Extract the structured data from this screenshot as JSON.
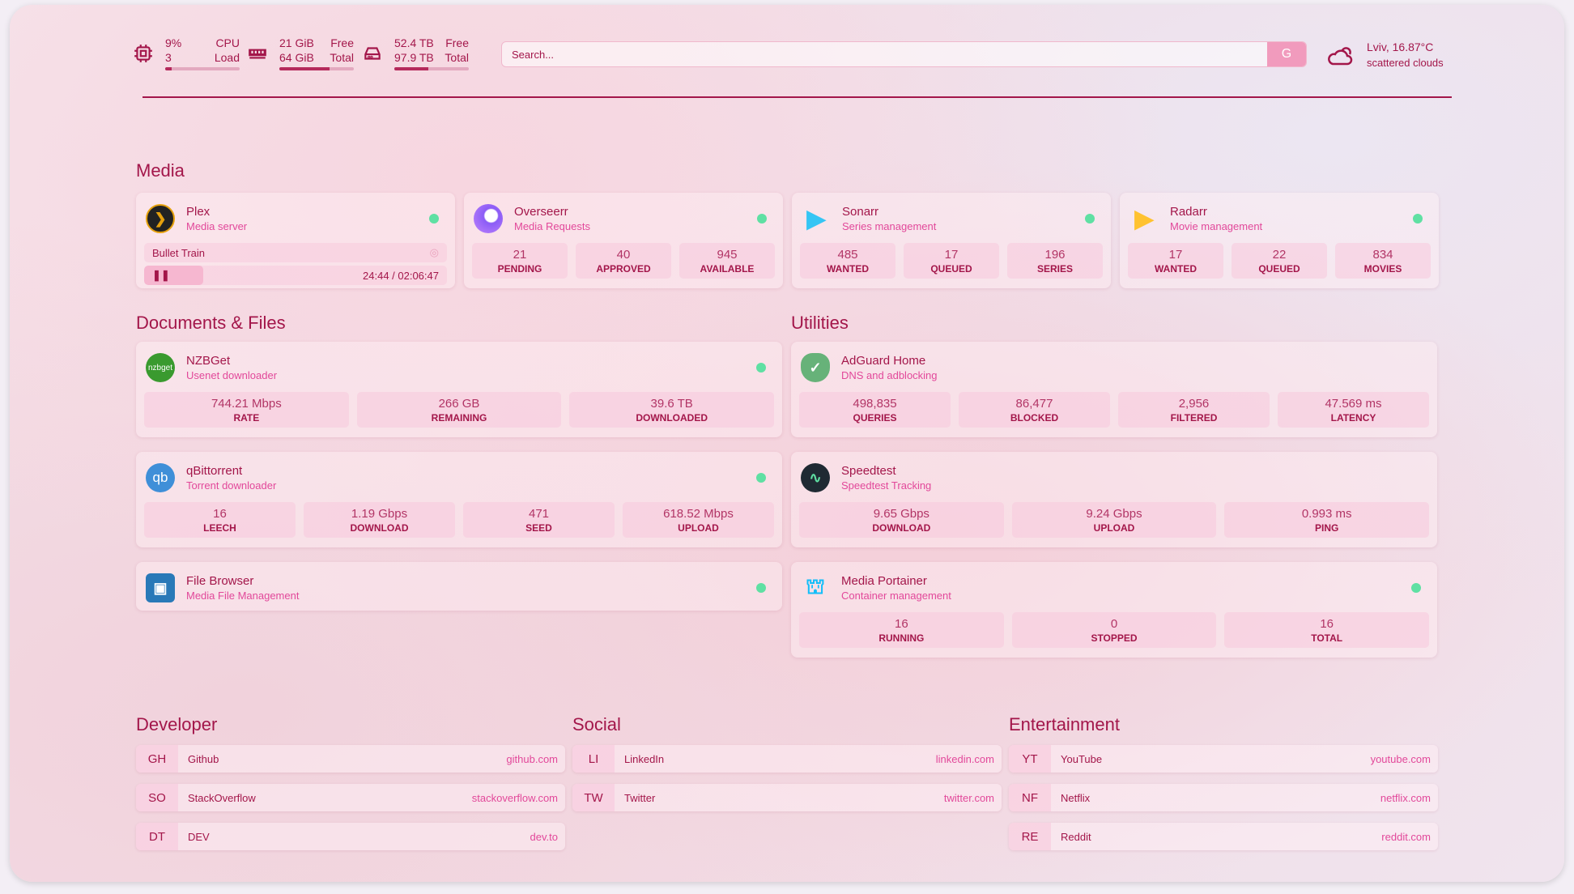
{
  "header": {
    "cpu": {
      "icon": "cpu-icon",
      "value": "9%",
      "sub": "3",
      "label1": "CPU",
      "label2": "Load",
      "fill": 0.09
    },
    "memory": {
      "icon": "memory-icon",
      "value": "21 GiB",
      "sub": "64 GiB",
      "label1": "Free",
      "label2": "Total",
      "fill": 0.67
    },
    "disk": {
      "icon": "disk-icon",
      "value": "52.4 TB",
      "sub": "97.9 TB",
      "label1": "Free",
      "label2": "Total",
      "fill": 0.46
    },
    "search": {
      "placeholder": "Search...",
      "button": "G"
    },
    "weather": {
      "icon": "cloud-icon",
      "location": "Lviv, 16.87°C",
      "description": "scattered clouds"
    }
  },
  "media": {
    "title": "Media",
    "plex": {
      "name": "Plex",
      "sub": "Media server",
      "status": "online",
      "now_playing": "Bullet Train",
      "time": "24:44 / 02:06:47",
      "progress": 0.195
    },
    "cards": [
      {
        "name": "Overseerr",
        "sub": "Media Requests",
        "icon": "overseerr-icon",
        "stats": [
          {
            "v": "21",
            "l": "PENDING"
          },
          {
            "v": "40",
            "l": "APPROVED"
          },
          {
            "v": "945",
            "l": "AVAILABLE"
          }
        ]
      },
      {
        "name": "Sonarr",
        "sub": "Series management",
        "icon": "sonarr-icon",
        "stats": [
          {
            "v": "485",
            "l": "WANTED"
          },
          {
            "v": "17",
            "l": "QUEUED"
          },
          {
            "v": "196",
            "l": "SERIES"
          }
        ]
      },
      {
        "name": "Radarr",
        "sub": "Movie management",
        "icon": "radarr-icon",
        "stats": [
          {
            "v": "17",
            "l": "WANTED"
          },
          {
            "v": "22",
            "l": "QUEUED"
          },
          {
            "v": "834",
            "l": "MOVIES"
          }
        ]
      }
    ]
  },
  "docs": {
    "title": "Documents & Files",
    "cards": [
      {
        "name": "NZBGet",
        "sub": "Usenet downloader",
        "icon": "nzbget-icon",
        "stats": [
          {
            "v": "744.21 Mbps",
            "l": "RATE"
          },
          {
            "v": "266 GB",
            "l": "REMAINING"
          },
          {
            "v": "39.6 TB",
            "l": "DOWNLOADED"
          }
        ]
      },
      {
        "name": "qBittorrent",
        "sub": "Torrent downloader",
        "icon": "qbittorrent-icon",
        "stats": [
          {
            "v": "16",
            "l": "LEECH"
          },
          {
            "v": "1.19 Gbps",
            "l": "DOWNLOAD"
          },
          {
            "v": "471",
            "l": "SEED"
          },
          {
            "v": "618.52 Mbps",
            "l": "UPLOAD"
          }
        ]
      },
      {
        "name": "File Browser",
        "sub": "Media File Management",
        "icon": "filebrowser-icon",
        "stats": []
      }
    ]
  },
  "utilities": {
    "title": "Utilities",
    "cards": [
      {
        "name": "AdGuard Home",
        "sub": "DNS and adblocking",
        "icon": "adguard-icon",
        "stats": [
          {
            "v": "498,835",
            "l": "QUERIES"
          },
          {
            "v": "86,477",
            "l": "BLOCKED"
          },
          {
            "v": "2,956",
            "l": "FILTERED"
          },
          {
            "v": "47.569 ms",
            "l": "LATENCY"
          }
        ]
      },
      {
        "name": "Speedtest",
        "sub": "Speedtest Tracking",
        "icon": "speedtest-icon",
        "stats": [
          {
            "v": "9.65 Gbps",
            "l": "DOWNLOAD"
          },
          {
            "v": "9.24 Gbps",
            "l": "UPLOAD"
          },
          {
            "v": "0.993 ms",
            "l": "PING"
          }
        ]
      },
      {
        "name": "Media Portainer",
        "sub": "Container management",
        "icon": "portainer-icon",
        "stats": [
          {
            "v": "16",
            "l": "RUNNING"
          },
          {
            "v": "0",
            "l": "STOPPED"
          },
          {
            "v": "16",
            "l": "TOTAL"
          }
        ]
      }
    ]
  },
  "bookmarks": [
    {
      "title": "Developer",
      "links": [
        {
          "abbr": "GH",
          "name": "Github",
          "url": "github.com"
        },
        {
          "abbr": "SO",
          "name": "StackOverflow",
          "url": "stackoverflow.com"
        },
        {
          "abbr": "DT",
          "name": "DEV",
          "url": "dev.to"
        }
      ]
    },
    {
      "title": "Social",
      "links": [
        {
          "abbr": "LI",
          "name": "LinkedIn",
          "url": "linkedin.com"
        },
        {
          "abbr": "TW",
          "name": "Twitter",
          "url": "twitter.com"
        }
      ]
    },
    {
      "title": "Entertainment",
      "links": [
        {
          "abbr": "YT",
          "name": "YouTube",
          "url": "youtube.com"
        },
        {
          "abbr": "NF",
          "name": "Netflix",
          "url": "netflix.com"
        },
        {
          "abbr": "RE",
          "name": "Reddit",
          "url": "reddit.com"
        }
      ]
    }
  ],
  "colors": {
    "accent": "#a3164a",
    "subtitle": "#e2489a",
    "status_online": "#5fe0a3"
  }
}
